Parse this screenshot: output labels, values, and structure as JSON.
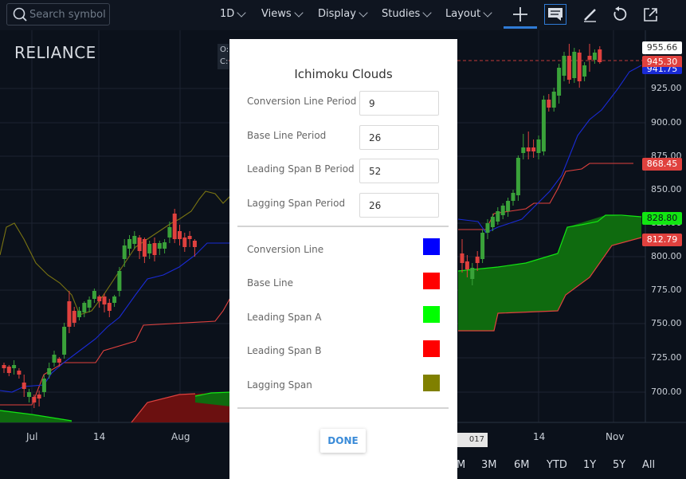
{
  "toolbar": {
    "search_placeholder": "Search symbol",
    "interval": "1D",
    "views": "Views",
    "display": "Display",
    "studies": "Studies",
    "layout": "Layout"
  },
  "chart": {
    "symbol": "RELIANCE",
    "ohlc_labels": [
      "O:",
      "C:"
    ],
    "price_axis": [
      "925.00",
      "900.00",
      "875.00",
      "850.00",
      "825.00",
      "800.00",
      "775.00",
      "750.00",
      "725.00",
      "700.00"
    ],
    "price_tags": [
      {
        "text": "955.66",
        "bg": "#ffffff",
        "fg": "#333333"
      },
      {
        "text": "945.30",
        "bg": "#e0413e",
        "fg": "#ffffff"
      },
      {
        "text": "941.75",
        "bg": "#1a2bd6",
        "fg": "#ffffff"
      },
      {
        "text": "868.45",
        "bg": "#e0413e",
        "fg": "#ffffff"
      },
      {
        "text": "828.80",
        "bg": "#12e612",
        "fg": "#0b111b"
      },
      {
        "text": "812.79",
        "bg": "#e0413e",
        "fg": "#ffffff"
      }
    ],
    "time_axis": [
      "Jul",
      "14",
      "Aug",
      "14",
      "Nov"
    ],
    "crosshair_date": "017",
    "ranges": [
      "M",
      "3M",
      "6M",
      "YTD",
      "1Y",
      "5Y",
      "All"
    ],
    "colors": {
      "bg": "#0b111b",
      "up_candle": "#3aa23a",
      "down_candle": "#e0413e",
      "conversion": "#1a2bd6",
      "base": "#e0413e",
      "lagging": "#7a7412",
      "cloud_bull": "#0f6b0f",
      "cloud_bear": "#6b1010"
    }
  },
  "modal": {
    "title": "Ichimoku Clouds",
    "inputs": [
      {
        "label": "Conversion Line Period",
        "value": "9"
      },
      {
        "label": "Base Line Period",
        "value": "26"
      },
      {
        "label": "Leading Span B Period",
        "value": "52"
      },
      {
        "label": "Lagging Span Period",
        "value": "26"
      }
    ],
    "colors": [
      {
        "label": "Conversion Line",
        "color": "#0000ff"
      },
      {
        "label": "Base Line",
        "color": "#ff0000"
      },
      {
        "label": "Leading Span A",
        "color": "#00ff00"
      },
      {
        "label": "Leading Span B",
        "color": "#ff0000"
      },
      {
        "label": "Lagging Span",
        "color": "#808000"
      }
    ],
    "done_label": "DONE"
  }
}
